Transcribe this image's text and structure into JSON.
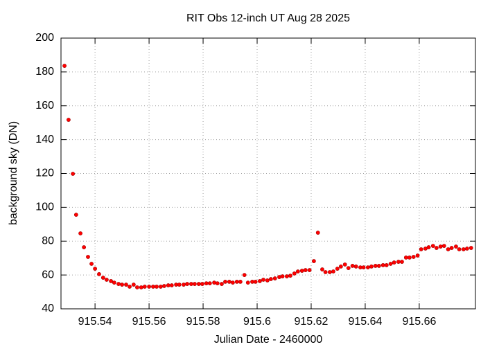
{
  "chart_data": {
    "type": "scatter",
    "title": "RIT Obs 12-inch UT Aug 28 2025",
    "x_label": "Julian Date - 2460000",
    "y_label": "background sky (DN)",
    "color": "#ff0000",
    "grid": true,
    "xlim": [
      915.5274,
      915.6808
    ],
    "xticks": [
      915.54,
      915.56,
      915.58,
      915.6,
      915.62,
      915.64,
      915.66
    ],
    "ylim": [
      40,
      200
    ],
    "yticks": [
      40,
      60,
      80,
      100,
      120,
      140,
      160,
      180,
      200
    ],
    "x": [
      915.5287,
      915.5302,
      915.5318,
      915.533,
      915.5346,
      915.5359,
      915.5374,
      915.5387,
      915.54,
      915.5415,
      915.543,
      915.5443,
      915.5459,
      915.5471,
      915.5487,
      915.55,
      915.5515,
      915.5528,
      915.5543,
      915.5556,
      915.5571,
      915.5584,
      915.56,
      915.5615,
      915.5628,
      915.5643,
      915.5656,
      915.5671,
      915.5684,
      915.57,
      915.5712,
      915.5728,
      915.5741,
      915.5756,
      915.5769,
      915.5784,
      915.5797,
      915.5812,
      915.5825,
      915.5841,
      915.5853,
      915.5869,
      915.5882,
      915.5897,
      915.591,
      915.5925,
      915.5938,
      915.5953,
      915.5966,
      915.5982,
      915.5994,
      915.601,
      915.6023,
      915.6038,
      915.6051,
      915.6066,
      915.6082,
      915.6094,
      915.611,
      915.6123,
      915.6138,
      915.6151,
      915.6166,
      915.6179,
      915.6194,
      915.621,
      915.6225,
      915.6241,
      915.6253,
      915.6269,
      915.6282,
      915.6297,
      915.631,
      915.6325,
      915.6338,
      915.6353,
      915.6366,
      915.6382,
      915.6394,
      915.641,
      915.6423,
      915.6438,
      915.6451,
      915.6466,
      915.6479,
      915.6494,
      915.6507,
      915.6523,
      915.6536,
      915.6551,
      915.6564,
      915.6579,
      915.6594,
      915.6607,
      915.6623,
      915.6635,
      915.6651,
      915.6664,
      915.6679,
      915.6692,
      915.6707,
      915.672,
      915.6736,
      915.6748,
      915.6764,
      915.6777,
      915.6792
    ],
    "values": [
      183.6,
      151.7,
      119.8,
      95.6,
      84.6,
      76.4,
      70.7,
      66.6,
      63.7,
      60.5,
      58.4,
      57.2,
      56.4,
      55.5,
      54.7,
      54.3,
      54.3,
      53.1,
      54.3,
      52.7,
      52.7,
      53.1,
      53.1,
      53.1,
      53.1,
      53.1,
      53.5,
      53.9,
      53.9,
      54.3,
      54.3,
      54.3,
      54.7,
      54.7,
      54.7,
      54.7,
      54.7,
      55.1,
      55.1,
      55.5,
      55.1,
      54.7,
      56,
      56,
      55.5,
      56,
      56,
      60,
      55.5,
      56,
      56,
      56.4,
      57.2,
      56.8,
      57.6,
      58,
      58.8,
      59.2,
      59.2,
      59.6,
      60.9,
      62.1,
      62.5,
      62.9,
      62.9,
      68.2,
      85,
      63.3,
      61.7,
      61.7,
      62.1,
      63.7,
      65,
      66.2,
      64.1,
      65.4,
      65,
      64.5,
      64.5,
      64.5,
      65,
      65.4,
      65.4,
      65.8,
      65.8,
      66.6,
      67.4,
      67.8,
      67.8,
      70.3,
      70.3,
      70.7,
      71.5,
      75.2,
      75.6,
      76.4,
      77.2,
      76,
      76.8,
      77.2,
      75.2,
      76,
      76.8,
      75.2,
      75.2,
      75.6,
      76
    ]
  }
}
